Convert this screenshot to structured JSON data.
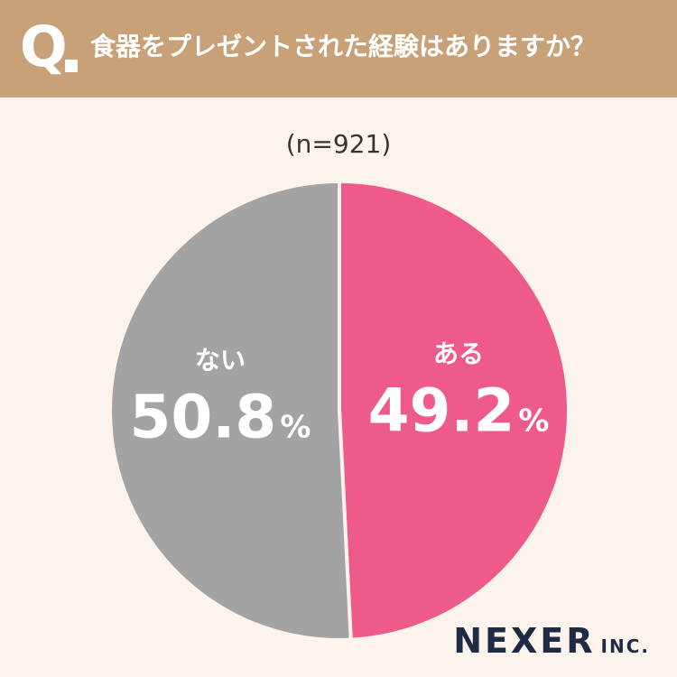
{
  "header": {
    "q_label": "Q",
    "question": "食器をプレゼントされた経験はありますか？"
  },
  "sample_size": "(n=921)",
  "chart_data": {
    "type": "pie",
    "title": "食器をプレゼントされた経験はありますか？",
    "subtitle": "(n=921)",
    "slices": [
      {
        "label": "ある",
        "value": 49.2,
        "value_text": "49.2",
        "unit": "%",
        "color": "#ee5a8a"
      },
      {
        "label": "ない",
        "value": 50.8,
        "value_text": "50.8",
        "unit": "%",
        "color": "#a3a3a3"
      }
    ],
    "start": "12 o'clock",
    "direction": "clockwise",
    "separator_color": "#fbf3ec",
    "label_color": "#ffffff"
  },
  "brand": {
    "name": "NEXER",
    "suffix": "INC."
  }
}
